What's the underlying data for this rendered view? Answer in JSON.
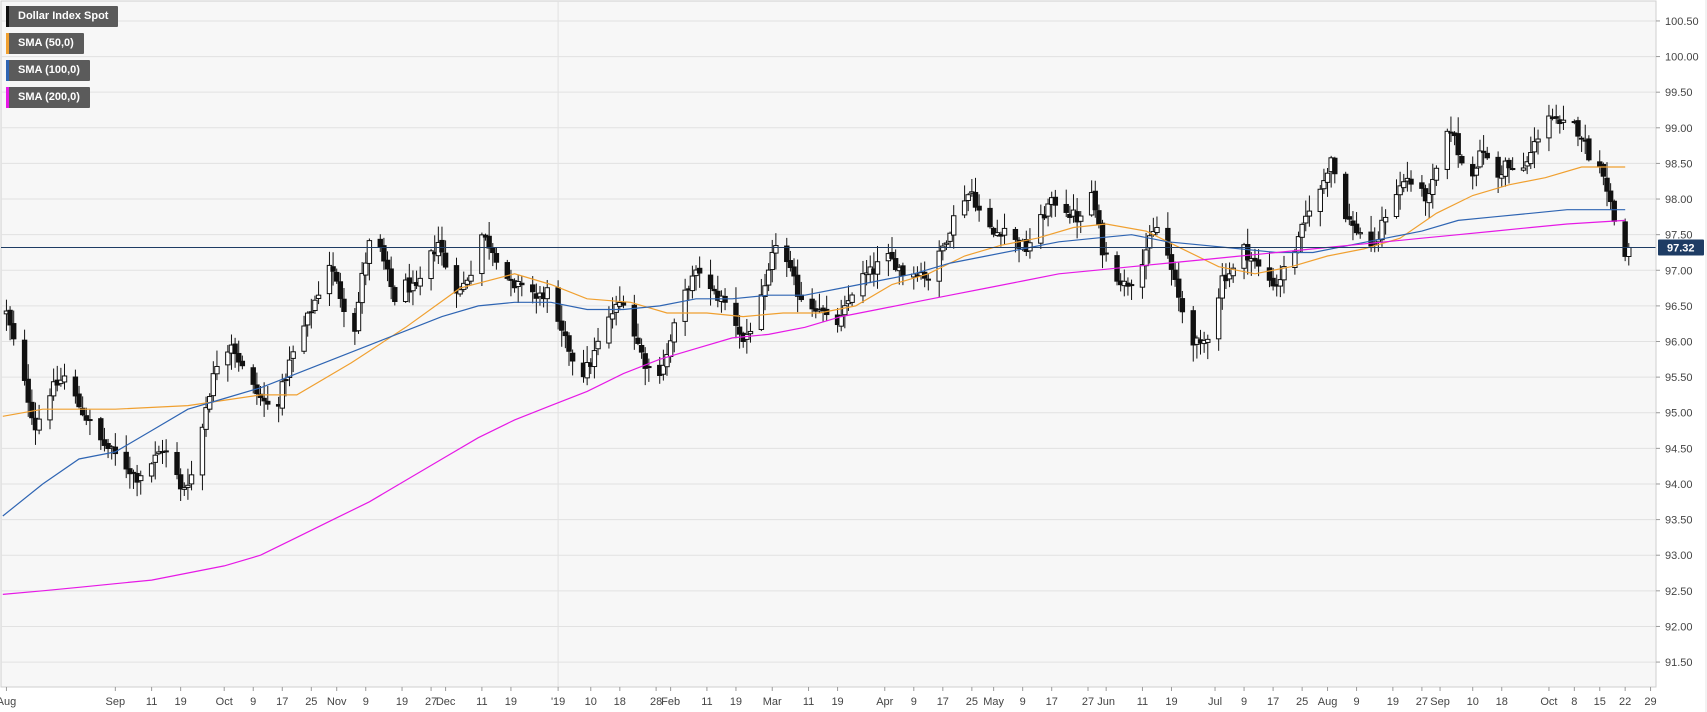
{
  "chart_data": {
    "type": "candlestick",
    "title": "",
    "symbol": "Dollar Index Spot",
    "last_price": "97.32",
    "y_range": [
      91.15,
      100.78
    ],
    "y_ticks": [
      "91.50",
      "92.00",
      "92.50",
      "93.00",
      "93.50",
      "94.00",
      "94.50",
      "95.00",
      "95.50",
      "96.00",
      "96.50",
      "97.00",
      "97.50",
      "98.00",
      "98.50",
      "99.00",
      "99.50",
      "100.00",
      "100.50"
    ],
    "x_ticks": [
      {
        "label": "Aug",
        "day": 0
      },
      {
        "label": "Sep",
        "day": 30
      },
      {
        "label": "11",
        "day": 40
      },
      {
        "label": "19",
        "day": 48
      },
      {
        "label": "Oct",
        "day": 60
      },
      {
        "label": "9",
        "day": 68
      },
      {
        "label": "17",
        "day": 76
      },
      {
        "label": "25",
        "day": 84
      },
      {
        "label": "Nov",
        "day": 91
      },
      {
        "label": "9",
        "day": 99
      },
      {
        "label": "19",
        "day": 109
      },
      {
        "label": "27",
        "day": 117
      },
      {
        "label": "Dec",
        "day": 121
      },
      {
        "label": "11",
        "day": 131
      },
      {
        "label": "19",
        "day": 139
      },
      {
        "label": "'19",
        "day": 152
      },
      {
        "label": "10",
        "day": 161
      },
      {
        "label": "18",
        "day": 169
      },
      {
        "label": "28",
        "day": 179
      },
      {
        "label": "Feb",
        "day": 183
      },
      {
        "label": "11",
        "day": 193
      },
      {
        "label": "19",
        "day": 201
      },
      {
        "label": "Mar",
        "day": 211
      },
      {
        "label": "11",
        "day": 221
      },
      {
        "label": "19",
        "day": 229
      },
      {
        "label": "Apr",
        "day": 242
      },
      {
        "label": "9",
        "day": 250
      },
      {
        "label": "17",
        "day": 258
      },
      {
        "label": "25",
        "day": 266
      },
      {
        "label": "May",
        "day": 272
      },
      {
        "label": "9",
        "day": 280
      },
      {
        "label": "17",
        "day": 288
      },
      {
        "label": "27",
        "day": 298
      },
      {
        "label": "Jun",
        "day": 303
      },
      {
        "label": "11",
        "day": 313
      },
      {
        "label": "19",
        "day": 321
      },
      {
        "label": "Jul",
        "day": 333
      },
      {
        "label": "9",
        "day": 341
      },
      {
        "label": "17",
        "day": 349
      },
      {
        "label": "25",
        "day": 357
      },
      {
        "label": "Aug",
        "day": 364
      },
      {
        "label": "9",
        "day": 372
      },
      {
        "label": "19",
        "day": 382
      },
      {
        "label": "27",
        "day": 390
      },
      {
        "label": "Sep",
        "day": 395
      },
      {
        "label": "10",
        "day": 404
      },
      {
        "label": "18",
        "day": 412
      },
      {
        "label": "Oct",
        "day": 425
      },
      {
        "label": "8",
        "day": 432
      },
      {
        "label": "15",
        "day": 439
      },
      {
        "label": "22",
        "day": 446
      },
      {
        "label": "29",
        "day": 453
      }
    ],
    "x_day_range": [
      -1.5,
      454.5
    ],
    "price_anchors": [
      [
        0,
        96.4
      ],
      [
        4,
        95.6
      ],
      [
        8,
        94.8
      ],
      [
        12,
        95.3
      ],
      [
        16,
        95.5
      ],
      [
        20,
        95.1
      ],
      [
        26,
        94.6
      ],
      [
        30,
        94.4
      ],
      [
        36,
        94.1
      ],
      [
        40,
        94.3
      ],
      [
        43,
        94.5
      ],
      [
        46,
        94.3
      ],
      [
        48,
        93.9
      ],
      [
        52,
        94.2
      ],
      [
        55,
        95.1
      ],
      [
        58,
        95.7
      ],
      [
        62,
        96.0
      ],
      [
        66,
        95.5
      ],
      [
        70,
        95.2
      ],
      [
        74,
        95.0
      ],
      [
        78,
        95.7
      ],
      [
        82,
        96.2
      ],
      [
        86,
        96.7
      ],
      [
        89,
        97.1
      ],
      [
        93,
        96.5
      ],
      [
        96,
        96.2
      ],
      [
        98,
        96.9
      ],
      [
        101,
        97.6
      ],
      [
        104,
        97.1
      ],
      [
        107,
        96.6
      ],
      [
        110,
        96.8
      ],
      [
        113,
        96.7
      ],
      [
        116,
        97.1
      ],
      [
        119,
        97.4
      ],
      [
        122,
        96.9
      ],
      [
        125,
        96.7
      ],
      [
        128,
        97.0
      ],
      [
        131,
        97.5
      ],
      [
        134,
        97.3
      ],
      [
        137,
        97.0
      ],
      [
        140,
        96.7
      ],
      [
        143,
        96.9
      ],
      [
        146,
        96.6
      ],
      [
        149,
        96.7
      ],
      [
        152,
        96.2
      ],
      [
        155,
        95.9
      ],
      [
        158,
        95.5
      ],
      [
        161,
        95.7
      ],
      [
        164,
        96.1
      ],
      [
        167,
        96.4
      ],
      [
        170,
        96.6
      ],
      [
        173,
        96.1
      ],
      [
        176,
        95.7
      ],
      [
        179,
        95.5
      ],
      [
        182,
        95.8
      ],
      [
        185,
        96.4
      ],
      [
        188,
        96.8
      ],
      [
        191,
        97.0
      ],
      [
        194,
        96.7
      ],
      [
        197,
        96.6
      ],
      [
        200,
        96.4
      ],
      [
        203,
        96.0
      ],
      [
        206,
        96.3
      ],
      [
        209,
        96.7
      ],
      [
        212,
        97.4
      ],
      [
        215,
        97.1
      ],
      [
        218,
        96.7
      ],
      [
        221,
        96.5
      ],
      [
        224,
        96.5
      ],
      [
        227,
        96.2
      ],
      [
        230,
        96.3
      ],
      [
        233,
        96.7
      ],
      [
        236,
        96.9
      ],
      [
        239,
        97.0
      ],
      [
        242,
        97.2
      ],
      [
        245,
        97.1
      ],
      [
        248,
        96.9
      ],
      [
        251,
        97.0
      ],
      [
        254,
        96.9
      ],
      [
        257,
        97.2
      ],
      [
        260,
        97.6
      ],
      [
        263,
        98.0
      ],
      [
        266,
        98.1
      ],
      [
        269,
        97.7
      ],
      [
        272,
        97.5
      ],
      [
        275,
        97.6
      ],
      [
        278,
        97.4
      ],
      [
        281,
        97.3
      ],
      [
        284,
        97.6
      ],
      [
        287,
        97.9
      ],
      [
        290,
        98.0
      ],
      [
        293,
        97.8
      ],
      [
        296,
        97.7
      ],
      [
        299,
        98.1
      ],
      [
        302,
        97.3
      ],
      [
        305,
        97.0
      ],
      [
        308,
        96.8
      ],
      [
        311,
        96.9
      ],
      [
        314,
        97.3
      ],
      [
        317,
        97.6
      ],
      [
        320,
        97.2
      ],
      [
        323,
        96.6
      ],
      [
        326,
        96.1
      ],
      [
        329,
        95.9
      ],
      [
        332,
        96.2
      ],
      [
        335,
        96.9
      ],
      [
        338,
        97.0
      ],
      [
        341,
        97.3
      ],
      [
        344,
        97.1
      ],
      [
        347,
        96.9
      ],
      [
        350,
        96.8
      ],
      [
        353,
        97.1
      ],
      [
        356,
        97.4
      ],
      [
        359,
        97.9
      ],
      [
        362,
        98.1
      ],
      [
        365,
        98.6
      ],
      [
        368,
        97.9
      ],
      [
        371,
        97.6
      ],
      [
        374,
        97.5
      ],
      [
        377,
        97.3
      ],
      [
        380,
        97.8
      ],
      [
        383,
        98.1
      ],
      [
        386,
        98.3
      ],
      [
        389,
        98.1
      ],
      [
        392,
        98.0
      ],
      [
        395,
        98.6
      ],
      [
        398,
        99.0
      ],
      [
        401,
        98.5
      ],
      [
        404,
        98.4
      ],
      [
        407,
        98.7
      ],
      [
        410,
        98.2
      ],
      [
        413,
        98.5
      ],
      [
        416,
        98.3
      ],
      [
        419,
        98.5
      ],
      [
        422,
        98.9
      ],
      [
        425,
        99.2
      ],
      [
        428,
        99.0
      ],
      [
        431,
        99.1
      ],
      [
        434,
        98.9
      ],
      [
        437,
        98.5
      ],
      [
        440,
        98.4
      ],
      [
        443,
        97.7
      ],
      [
        446,
        97.2
      ],
      [
        447,
        97.32
      ]
    ],
    "series": [
      {
        "name": "SMA (50,0)",
        "color": "#f0a030",
        "points": [
          [
            -1,
            94.95
          ],
          [
            10,
            95.05
          ],
          [
            30,
            95.05
          ],
          [
            50,
            95.1
          ],
          [
            70,
            95.25
          ],
          [
            80,
            95.25
          ],
          [
            95,
            95.7
          ],
          [
            110,
            96.2
          ],
          [
            125,
            96.75
          ],
          [
            140,
            96.95
          ],
          [
            150,
            96.8
          ],
          [
            160,
            96.6
          ],
          [
            172,
            96.55
          ],
          [
            182,
            96.4
          ],
          [
            193,
            96.4
          ],
          [
            203,
            96.35
          ],
          [
            214,
            96.4
          ],
          [
            224,
            96.4
          ],
          [
            234,
            96.5
          ],
          [
            244,
            96.8
          ],
          [
            254,
            96.95
          ],
          [
            264,
            97.2
          ],
          [
            274,
            97.35
          ],
          [
            284,
            97.45
          ],
          [
            294,
            97.6
          ],
          [
            303,
            97.65
          ],
          [
            314,
            97.55
          ],
          [
            324,
            97.3
          ],
          [
            334,
            97.05
          ],
          [
            344,
            96.95
          ],
          [
            354,
            97.05
          ],
          [
            364,
            97.2
          ],
          [
            374,
            97.3
          ],
          [
            384,
            97.45
          ],
          [
            394,
            97.8
          ],
          [
            404,
            98.05
          ],
          [
            414,
            98.2
          ],
          [
            424,
            98.3
          ],
          [
            434,
            98.45
          ],
          [
            446,
            98.45
          ]
        ]
      },
      {
        "name": "SMA (100,0)",
        "color": "#2f65b3",
        "points": [
          [
            -1,
            93.55
          ],
          [
            10,
            94.0
          ],
          [
            20,
            94.35
          ],
          [
            30,
            94.45
          ],
          [
            40,
            94.75
          ],
          [
            50,
            95.05
          ],
          [
            60,
            95.2
          ],
          [
            70,
            95.35
          ],
          [
            80,
            95.55
          ],
          [
            90,
            95.75
          ],
          [
            100,
            95.95
          ],
          [
            110,
            96.15
          ],
          [
            120,
            96.35
          ],
          [
            130,
            96.5
          ],
          [
            140,
            96.55
          ],
          [
            150,
            96.55
          ],
          [
            160,
            96.45
          ],
          [
            170,
            96.45
          ],
          [
            180,
            96.5
          ],
          [
            190,
            96.6
          ],
          [
            200,
            96.6
          ],
          [
            210,
            96.65
          ],
          [
            220,
            96.65
          ],
          [
            230,
            96.75
          ],
          [
            240,
            96.85
          ],
          [
            250,
            96.95
          ],
          [
            260,
            97.1
          ],
          [
            270,
            97.2
          ],
          [
            280,
            97.3
          ],
          [
            290,
            97.4
          ],
          [
            300,
            97.45
          ],
          [
            310,
            97.5
          ],
          [
            320,
            97.4
          ],
          [
            330,
            97.35
          ],
          [
            340,
            97.3
          ],
          [
            350,
            97.25
          ],
          [
            360,
            97.25
          ],
          [
            370,
            97.35
          ],
          [
            380,
            97.45
          ],
          [
            390,
            97.55
          ],
          [
            400,
            97.7
          ],
          [
            410,
            97.75
          ],
          [
            420,
            97.8
          ],
          [
            430,
            97.85
          ],
          [
            446,
            97.85
          ]
        ]
      },
      {
        "name": "SMA (200,0)",
        "color": "#e619e6",
        "points": [
          [
            -1,
            92.45
          ],
          [
            10,
            92.5
          ],
          [
            20,
            92.55
          ],
          [
            30,
            92.6
          ],
          [
            40,
            92.65
          ],
          [
            50,
            92.75
          ],
          [
            60,
            92.85
          ],
          [
            70,
            93.0
          ],
          [
            80,
            93.25
          ],
          [
            90,
            93.5
          ],
          [
            100,
            93.75
          ],
          [
            110,
            94.05
          ],
          [
            120,
            94.35
          ],
          [
            130,
            94.65
          ],
          [
            140,
            94.9
          ],
          [
            150,
            95.1
          ],
          [
            160,
            95.3
          ],
          [
            170,
            95.55
          ],
          [
            180,
            95.75
          ],
          [
            190,
            95.9
          ],
          [
            200,
            96.05
          ],
          [
            210,
            96.1
          ],
          [
            220,
            96.2
          ],
          [
            230,
            96.35
          ],
          [
            240,
            96.45
          ],
          [
            250,
            96.55
          ],
          [
            260,
            96.65
          ],
          [
            270,
            96.75
          ],
          [
            280,
            96.85
          ],
          [
            290,
            96.95
          ],
          [
            300,
            97.0
          ],
          [
            310,
            97.05
          ],
          [
            320,
            97.1
          ],
          [
            330,
            97.15
          ],
          [
            340,
            97.2
          ],
          [
            350,
            97.25
          ],
          [
            360,
            97.3
          ],
          [
            370,
            97.35
          ],
          [
            380,
            97.4
          ],
          [
            390,
            97.45
          ],
          [
            400,
            97.5
          ],
          [
            410,
            97.55
          ],
          [
            420,
            97.6
          ],
          [
            430,
            97.65
          ],
          [
            446,
            97.7
          ]
        ]
      }
    ]
  }
}
